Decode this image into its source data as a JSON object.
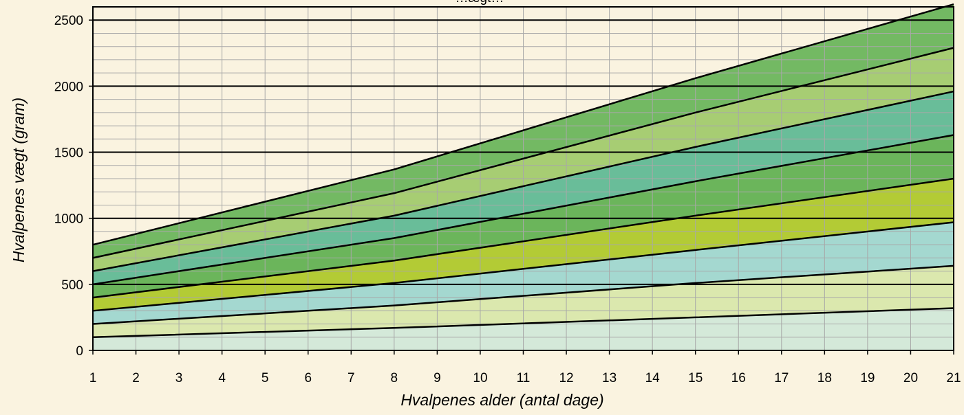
{
  "colors": {
    "background": "#faf3e0",
    "grid_minor": "#a8a8a8",
    "grid_major": "#000000",
    "band_fills": [
      "#d4e9d9",
      "#dbe8ae",
      "#a4d8d0",
      "#b3cb35",
      "#6bb55b",
      "#69bd99",
      "#a7cd73",
      "#73b963"
    ]
  },
  "chart_data": {
    "type": "area",
    "title": "…ægt…",
    "xlabel": "Hvalpenes alder (antal dage)",
    "ylabel": "Hvalpenes vægt (gram)",
    "x": [
      1,
      8,
      15,
      21
    ],
    "xlim": [
      1,
      21
    ],
    "ylim": [
      0,
      2600
    ],
    "x_ticks": [
      "1",
      "2",
      "3",
      "4",
      "5",
      "6",
      "7",
      "8",
      "9",
      "10",
      "11",
      "12",
      "13",
      "14",
      "15",
      "16",
      "17",
      "18",
      "19",
      "20",
      "21"
    ],
    "y_ticks": [
      "0",
      "500",
      "1000",
      "1500",
      "2000",
      "2500"
    ],
    "y_tick_values": [
      0,
      500,
      1000,
      1500,
      2000,
      2500
    ],
    "grid": true,
    "legend": "none",
    "curves": [
      {
        "values": [
          100,
          170,
          250,
          320
        ]
      },
      {
        "values": [
          200,
          340,
          510,
          640
        ]
      },
      {
        "values": [
          300,
          510,
          760,
          970
        ]
      },
      {
        "values": [
          400,
          680,
          1020,
          1300
        ]
      },
      {
        "values": [
          500,
          850,
          1280,
          1630
        ]
      },
      {
        "values": [
          600,
          1020,
          1540,
          1960
        ]
      },
      {
        "values": [
          700,
          1190,
          1800,
          2290
        ]
      },
      {
        "values": [
          800,
          1370,
          2060,
          2620
        ]
      }
    ]
  }
}
